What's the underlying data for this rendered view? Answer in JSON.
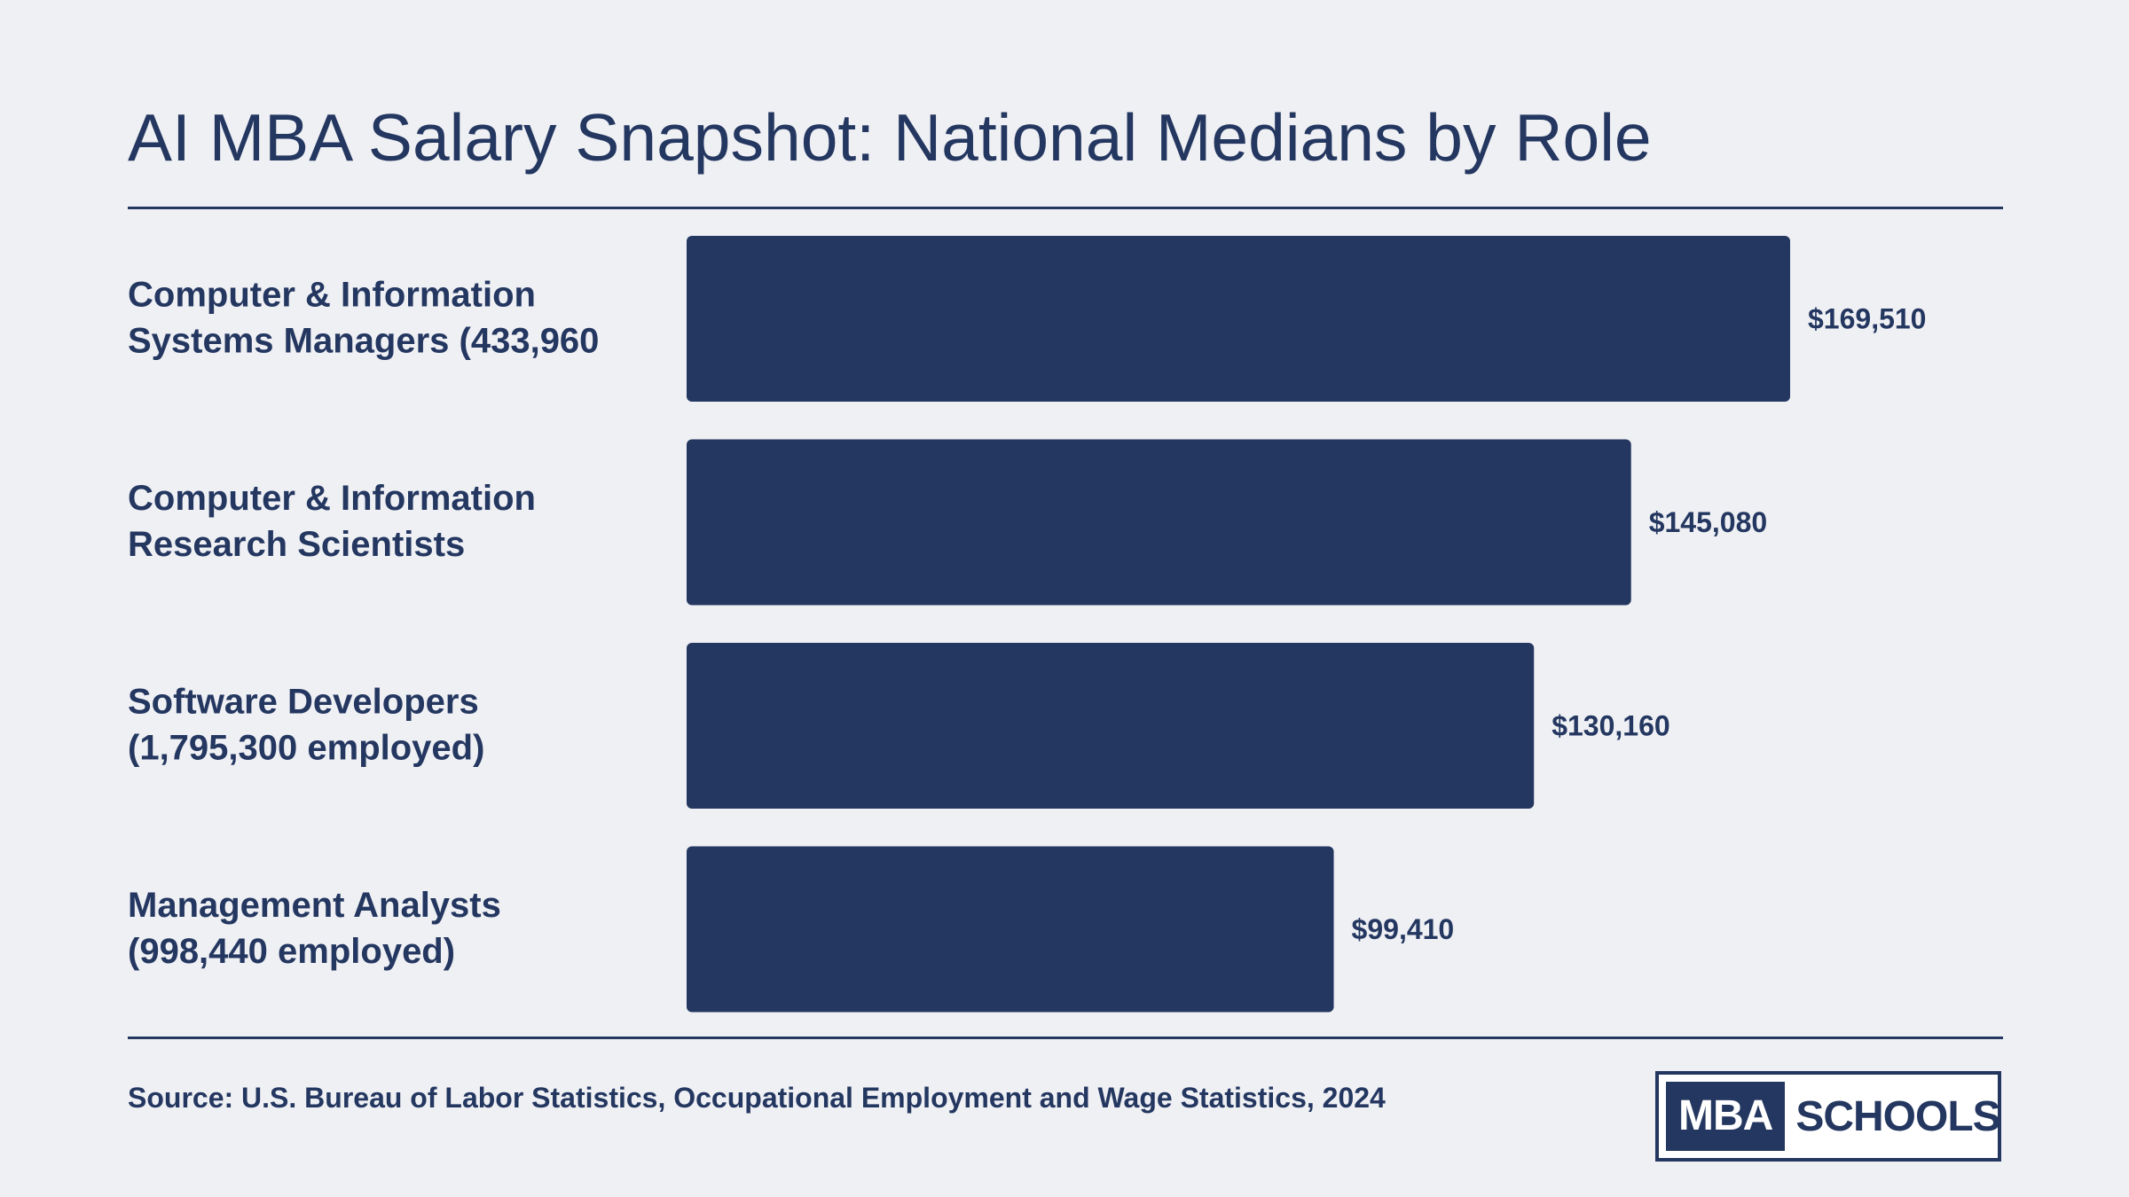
{
  "header": {
    "title": "AI MBA Salary Snapshot: National Medians by Role"
  },
  "chart_data": {
    "type": "bar",
    "orientation": "horizontal",
    "title": "AI MBA Salary Snapshot: National Medians by Role",
    "categories": [
      [
        "Computer & Information",
        "Systems Managers (433,960"
      ],
      [
        "Computer & Information",
        "Research Scientists"
      ],
      [
        "Software Developers",
        "(1,795,300 employed)"
      ],
      [
        "Management Analysts",
        "(998,440 employed)"
      ]
    ],
    "values": [
      169510,
      145080,
      130160,
      99410
    ],
    "value_labels": [
      "$169,510",
      "$145,080",
      "$130,160",
      "$99,410"
    ],
    "bar_color": "#243760",
    "grid": false,
    "legend": "none"
  },
  "footer": {
    "source": "Source: U.S. Bureau of Labor Statistics, Occupational Employment and Wage Statistics, 2024",
    "logo_mba": "MBA",
    "logo_schools": "SCHOOLS"
  },
  "colors": {
    "background": "#eff0f4",
    "primary": "#243760"
  }
}
